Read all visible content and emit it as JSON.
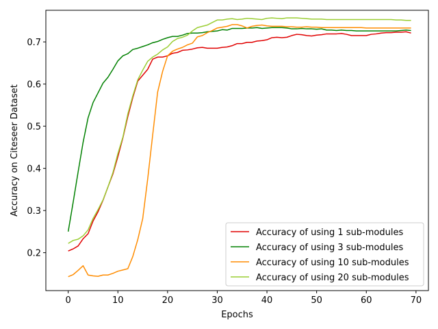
{
  "chart_data": {
    "type": "line",
    "title": "",
    "xlabel": "Epochs",
    "ylabel": "Accuracy on Citeseer Dataset",
    "xlim": [
      -4.5,
      72.5
    ],
    "ylim": [
      0.11,
      0.775
    ],
    "xticks": [
      0,
      10,
      20,
      30,
      40,
      50,
      60,
      70
    ],
    "yticks": [
      0.2,
      0.3,
      0.4,
      0.5,
      0.6,
      0.7
    ],
    "xtick_labels": [
      "0",
      "10",
      "20",
      "30",
      "40",
      "50",
      "60",
      "70"
    ],
    "ytick_labels": [
      "0.2",
      "0.3",
      "0.4",
      "0.5",
      "0.6",
      "0.7"
    ],
    "grid": false,
    "legend_position": "lower-right",
    "series": [
      {
        "name": "Accuracy of using 1 sub-modules",
        "color": "#e00000",
        "values": [
          0.204,
          0.209,
          0.216,
          0.233,
          0.245,
          0.275,
          0.297,
          0.324,
          0.356,
          0.387,
          0.428,
          0.472,
          0.523,
          0.568,
          0.607,
          0.621,
          0.635,
          0.659,
          0.664,
          0.664,
          0.667,
          0.673,
          0.675,
          0.68,
          0.681,
          0.683,
          0.686,
          0.687,
          0.685,
          0.685,
          0.685,
          0.687,
          0.688,
          0.691,
          0.696,
          0.696,
          0.699,
          0.699,
          0.702,
          0.703,
          0.705,
          0.71,
          0.711,
          0.71,
          0.711,
          0.715,
          0.718,
          0.717,
          0.715,
          0.714,
          0.716,
          0.717,
          0.719,
          0.719,
          0.719,
          0.72,
          0.718,
          0.715,
          0.715,
          0.715,
          0.715,
          0.718,
          0.719,
          0.721,
          0.722,
          0.722,
          0.723,
          0.723,
          0.724,
          0.721
        ]
      },
      {
        "name": "Accuracy of using 3 sub-modules",
        "color": "#008000",
        "values": [
          0.25,
          0.32,
          0.392,
          0.462,
          0.52,
          0.556,
          0.579,
          0.602,
          0.616,
          0.635,
          0.655,
          0.667,
          0.672,
          0.682,
          0.685,
          0.689,
          0.693,
          0.698,
          0.701,
          0.706,
          0.71,
          0.713,
          0.713,
          0.716,
          0.72,
          0.721,
          0.721,
          0.722,
          0.724,
          0.725,
          0.726,
          0.729,
          0.728,
          0.732,
          0.732,
          0.732,
          0.733,
          0.733,
          0.734,
          0.732,
          0.733,
          0.734,
          0.734,
          0.734,
          0.733,
          0.731,
          0.731,
          0.732,
          0.731,
          0.731,
          0.73,
          0.731,
          0.728,
          0.728,
          0.727,
          0.728,
          0.727,
          0.727,
          0.726,
          0.726,
          0.726,
          0.726,
          0.726,
          0.726,
          0.726,
          0.726,
          0.726,
          0.727,
          0.728,
          0.727
        ]
      },
      {
        "name": "Accuracy of using 10 sub-modules",
        "color": "#ff8c00",
        "values": [
          0.143,
          0.148,
          0.158,
          0.169,
          0.147,
          0.145,
          0.144,
          0.147,
          0.147,
          0.151,
          0.156,
          0.159,
          0.162,
          0.191,
          0.231,
          0.281,
          0.375,
          0.479,
          0.581,
          0.63,
          0.667,
          0.678,
          0.683,
          0.687,
          0.693,
          0.697,
          0.712,
          0.715,
          0.722,
          0.727,
          0.733,
          0.735,
          0.737,
          0.741,
          0.741,
          0.738,
          0.733,
          0.737,
          0.739,
          0.74,
          0.738,
          0.737,
          0.737,
          0.737,
          0.736,
          0.736,
          0.735,
          0.735,
          0.736,
          0.735,
          0.735,
          0.734,
          0.734,
          0.734,
          0.734,
          0.734,
          0.734,
          0.734,
          0.734,
          0.734,
          0.733,
          0.733,
          0.733,
          0.733,
          0.733,
          0.733,
          0.733,
          0.733,
          0.733,
          0.733
        ]
      },
      {
        "name": "Accuracy of using 20 sub-modules",
        "color": "#9acd32",
        "values": [
          0.222,
          0.229,
          0.232,
          0.24,
          0.254,
          0.281,
          0.302,
          0.325,
          0.356,
          0.39,
          0.435,
          0.474,
          0.529,
          0.572,
          0.61,
          0.633,
          0.654,
          0.664,
          0.671,
          0.681,
          0.688,
          0.701,
          0.708,
          0.711,
          0.716,
          0.726,
          0.734,
          0.737,
          0.74,
          0.746,
          0.752,
          0.752,
          0.754,
          0.755,
          0.753,
          0.754,
          0.756,
          0.755,
          0.754,
          0.753,
          0.756,
          0.757,
          0.756,
          0.755,
          0.757,
          0.757,
          0.757,
          0.756,
          0.755,
          0.754,
          0.754,
          0.754,
          0.753,
          0.753,
          0.753,
          0.753,
          0.753,
          0.753,
          0.753,
          0.753,
          0.753,
          0.753,
          0.753,
          0.753,
          0.753,
          0.753,
          0.752,
          0.752,
          0.751,
          0.751
        ]
      }
    ]
  }
}
